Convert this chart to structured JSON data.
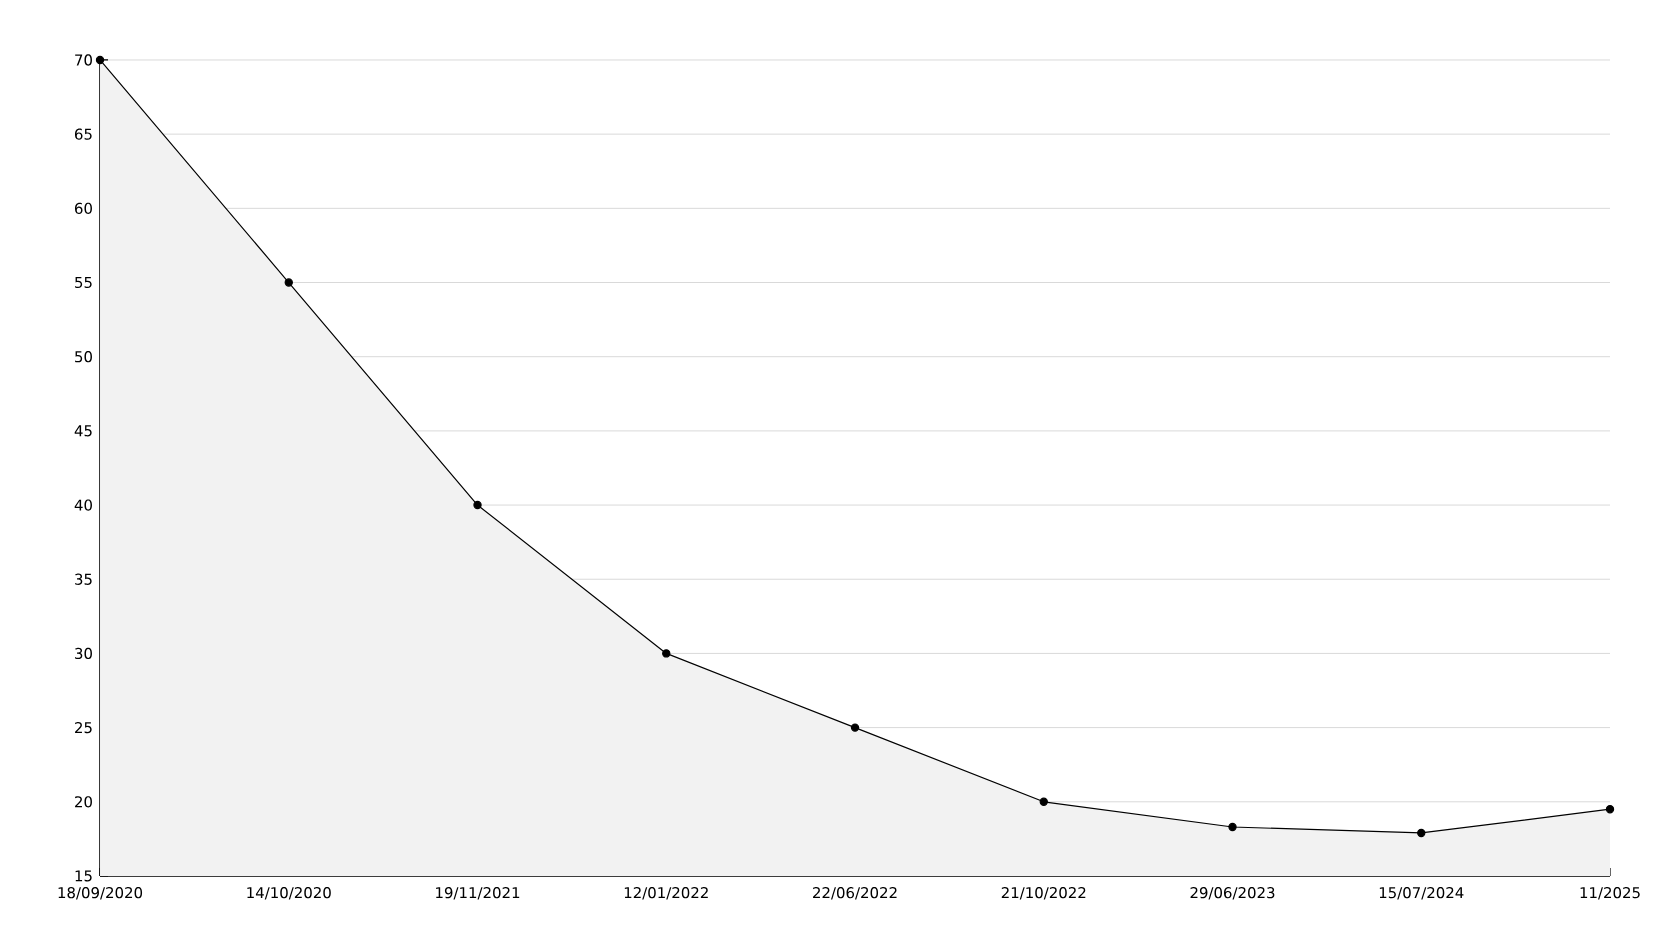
{
  "chart_data": {
    "type": "area",
    "categories": [
      "18/09/2020",
      "14/10/2020",
      "19/11/2021",
      "12/01/2022",
      "22/06/2022",
      "21/10/2022",
      "29/06/2023",
      "15/07/2024",
      "11/2025"
    ],
    "values": [
      70,
      55,
      40,
      30,
      25,
      20,
      18.3,
      17.9,
      19.5
    ],
    "color": "#000000",
    "ylim": [
      15,
      70
    ],
    "yticks": [
      15,
      20,
      25,
      30,
      35,
      40,
      45,
      50,
      55,
      60,
      65,
      70
    ],
    "grid": "y",
    "marker": "circle",
    "line_style": "solid"
  }
}
